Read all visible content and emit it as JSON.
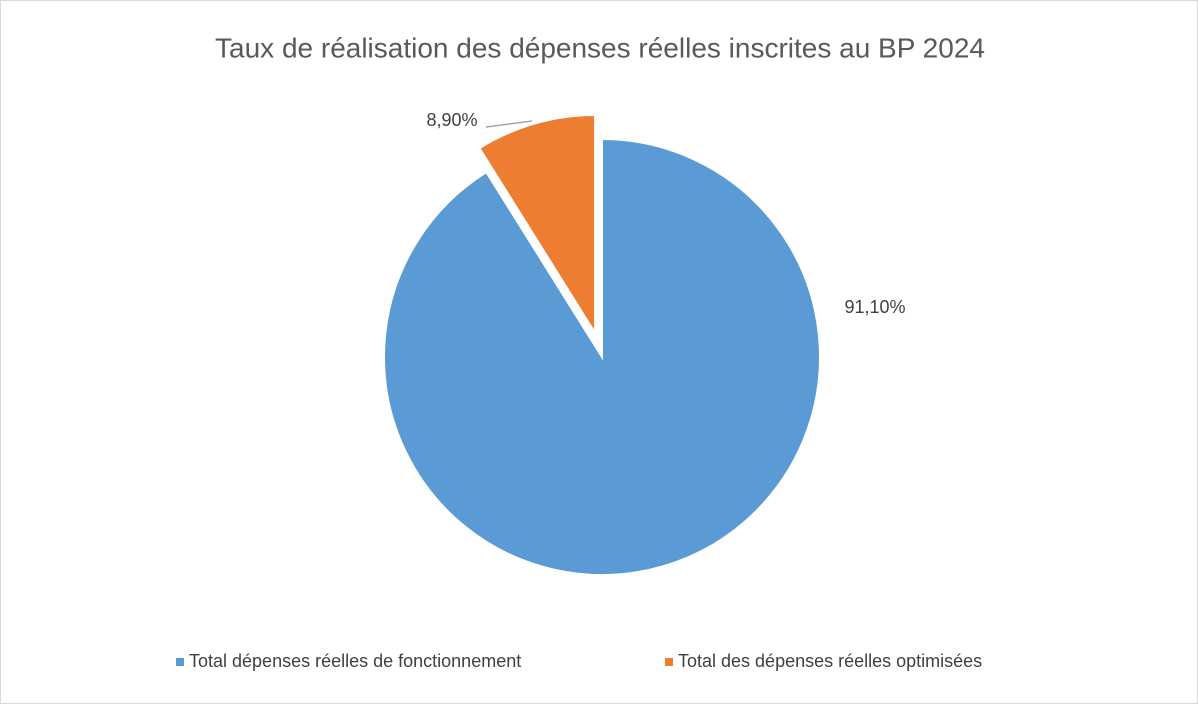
{
  "chart_data": {
    "type": "pie",
    "title": "Taux de réalisation des dépenses réelles inscrites au BP 2024",
    "categories": [
      "Total dépenses réelles de fonctionnement",
      "Total des dépenses réelles optimisées"
    ],
    "values": [
      91.1,
      8.9
    ],
    "value_labels": [
      "91,10%",
      "8,90%"
    ],
    "colors": [
      "#5b9bd5",
      "#ed7d31"
    ],
    "legend": "bottom"
  }
}
